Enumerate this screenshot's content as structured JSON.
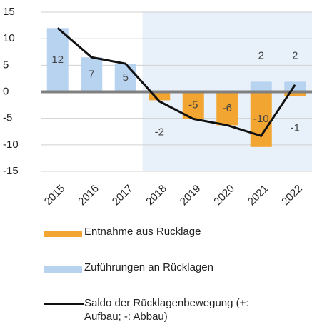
{
  "chart_data": {
    "type": "bar",
    "categories": [
      "2015",
      "2016",
      "2017",
      "2018",
      "2019",
      "2020",
      "2021",
      "2022"
    ],
    "series": [
      {
        "name": "Entnahme aus Rücklage",
        "color": "#f2a530",
        "values": [
          null,
          null,
          null,
          -1.6,
          -5.1,
          -6.3,
          -10.4,
          -0.8
        ],
        "value_labels": [
          null,
          null,
          null,
          "-2",
          "-5",
          "-6",
          "-10",
          "-1"
        ]
      },
      {
        "name": "Zuführungen an Rücklagen",
        "color": "#b8d3f0",
        "values": [
          12,
          6.5,
          5.2,
          null,
          null,
          null,
          1.9,
          1.9
        ],
        "value_labels": [
          "12",
          "7",
          "5",
          null,
          null,
          null,
          "2",
          "2"
        ]
      },
      {
        "name": "Saldo der Rücklagenbewegung (+: Aufbau; -: Abbau)",
        "color": "#111111",
        "type": "line",
        "values": [
          12,
          6.5,
          5.3,
          -1.8,
          -5.1,
          -6.3,
          -8.3,
          1.3
        ]
      }
    ],
    "ylim": [
      -15,
      15
    ],
    "yticks": [
      -15,
      -10,
      -5,
      0,
      5,
      10,
      15
    ],
    "grid": true
  }
}
